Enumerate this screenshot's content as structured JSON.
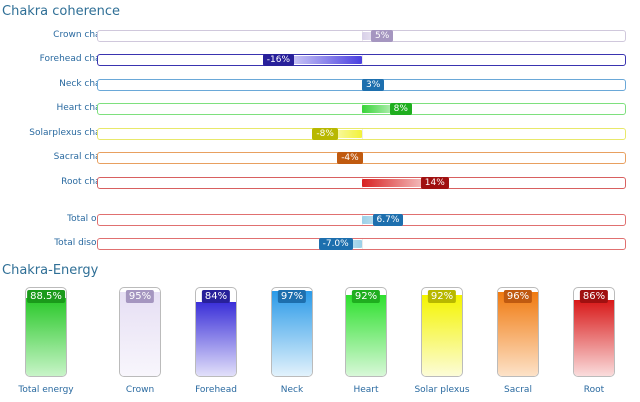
{
  "coherence": {
    "title": "Chakra coherence",
    "rows": [
      {
        "label": "Crown chakra",
        "value": 5,
        "display": "5%",
        "border": "#d0c8dc",
        "fill": "#d8d0e8",
        "badge": "#a596c0"
      },
      {
        "label": "Forehead chakra",
        "value": -16,
        "display": "-16%",
        "border": "#3a34b0",
        "fill": "#4a3fe0",
        "badge": "#28209a"
      },
      {
        "label": "Neck chakra",
        "value": 3,
        "display": "3%",
        "border": "#6aa8d8",
        "fill": "#3a8fd0",
        "badge": "#1d6fae"
      },
      {
        "label": "Heart chakra",
        "value": 8,
        "display": "8%",
        "border": "#7ee07e",
        "fill": "#38d438",
        "badge": "#1fae1f"
      },
      {
        "label": "Solarplexus chakra",
        "value": -8,
        "display": "-8%",
        "border": "#e8e86a",
        "fill": "#f2f23a",
        "badge": "#b8b800"
      },
      {
        "label": "Sacral chakra",
        "value": -4,
        "display": "-4%",
        "border": "#e8a060",
        "fill": "#f07a20",
        "badge": "#c05a10"
      },
      {
        "label": "Root chakra",
        "value": 14,
        "display": "14%",
        "border": "#d86060",
        "fill": "#d82020",
        "badge": "#a01010"
      }
    ],
    "totals": [
      {
        "label": "Total order",
        "value": 6.7,
        "display": "6.7%",
        "border": "#e07070",
        "fill": "#9ad0e8",
        "badge": "#1d6fae"
      },
      {
        "label": "Total disorder",
        "value": -7.0,
        "display": "-7.0%",
        "border": "#e07070",
        "fill": "#9ad0e8",
        "badge": "#1d6fae"
      }
    ]
  },
  "energy": {
    "title": "Chakra-Energy",
    "columns": [
      {
        "label": "Total energy",
        "value": 88.5,
        "display": "88.5%",
        "top": "#28c828",
        "bottom": "#c8f4c8",
        "badge": "#1a9a1a"
      },
      {
        "label": "Crown",
        "value": 95,
        "display": "95%",
        "top": "#e6dff4",
        "bottom": "#f8f6fc",
        "badge": "#a596c0"
      },
      {
        "label": "Forehead",
        "value": 84,
        "display": "84%",
        "top": "#3a2fd8",
        "bottom": "#e2e0fa",
        "badge": "#28209a"
      },
      {
        "label": "Neck",
        "value": 97,
        "display": "97%",
        "top": "#2a9ae8",
        "bottom": "#e2f2fc",
        "badge": "#1d6fae"
      },
      {
        "label": "Heart",
        "value": 92,
        "display": "92%",
        "top": "#2ee02e",
        "bottom": "#d8f8d8",
        "badge": "#1fae1f"
      },
      {
        "label": "Solar plexus",
        "value": 92,
        "display": "92%",
        "top": "#f4f400",
        "bottom": "#fcfcd8",
        "badge": "#b8b800"
      },
      {
        "label": "Sacral",
        "value": 96,
        "display": "96%",
        "top": "#f07a10",
        "bottom": "#fde2c8",
        "badge": "#c05a10"
      },
      {
        "label": "Root",
        "value": 86,
        "display": "86%",
        "top": "#d81818",
        "bottom": "#fadcdc",
        "badge": "#a01010"
      }
    ]
  }
}
